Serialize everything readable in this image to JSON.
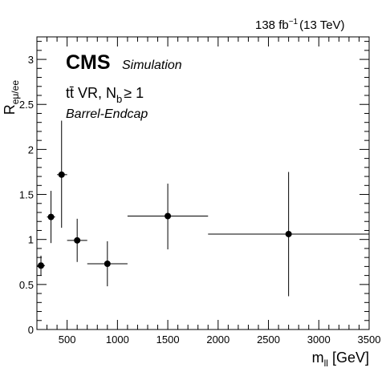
{
  "header": {
    "lumi": "138 fb",
    "lumi_exp": "−1",
    "energy": "(13 TeV)"
  },
  "labels": {
    "cms": "CMS",
    "simulation": "Simulation",
    "region_main": "tt̄ VR, N",
    "region_sub": "b",
    "region_cond": "≥ 1",
    "category": "Barrel-Endcap"
  },
  "chart_data": {
    "type": "scatter",
    "xlabel": "m",
    "xlabel_sub": "ll",
    "xlabel_unit": " [GeV]",
    "ylabel": "R",
    "ylabel_sub": "eμ/ee",
    "xlim": [
      200,
      3500
    ],
    "ylim": [
      0,
      3.25
    ],
    "x_ticks": [
      500,
      1000,
      1500,
      2000,
      2500,
      3000,
      3500
    ],
    "y_ticks": [
      0,
      0.5,
      1,
      1.5,
      2,
      2.5,
      3
    ],
    "y_tick_labels": [
      "0",
      "0.5",
      "1",
      "1.5",
      "2",
      "2.5",
      "3"
    ],
    "series": [
      {
        "points": [
          {
            "x": 240,
            "y": 0.71,
            "x_lo": 200,
            "x_hi": 280,
            "y_lo": 0.6,
            "y_hi": 0.82
          },
          {
            "x": 340,
            "y": 1.25,
            "x_lo": 300,
            "x_hi": 380,
            "y_lo": 0.96,
            "y_hi": 1.54
          },
          {
            "x": 445,
            "y": 1.72,
            "x_lo": 400,
            "x_hi": 500,
            "y_lo": 1.13,
            "y_hi": 2.32
          },
          {
            "x": 600,
            "y": 0.99,
            "x_lo": 500,
            "x_hi": 700,
            "y_lo": 0.75,
            "y_hi": 1.23
          },
          {
            "x": 900,
            "y": 0.73,
            "x_lo": 700,
            "x_hi": 1100,
            "y_lo": 0.48,
            "y_hi": 0.98
          },
          {
            "x": 1500,
            "y": 1.26,
            "x_lo": 1100,
            "x_hi": 1900,
            "y_lo": 0.89,
            "y_hi": 1.62
          },
          {
            "x": 2700,
            "y": 1.06,
            "x_lo": 1900,
            "x_hi": 3500,
            "y_lo": 0.37,
            "y_hi": 1.75
          }
        ]
      }
    ]
  }
}
